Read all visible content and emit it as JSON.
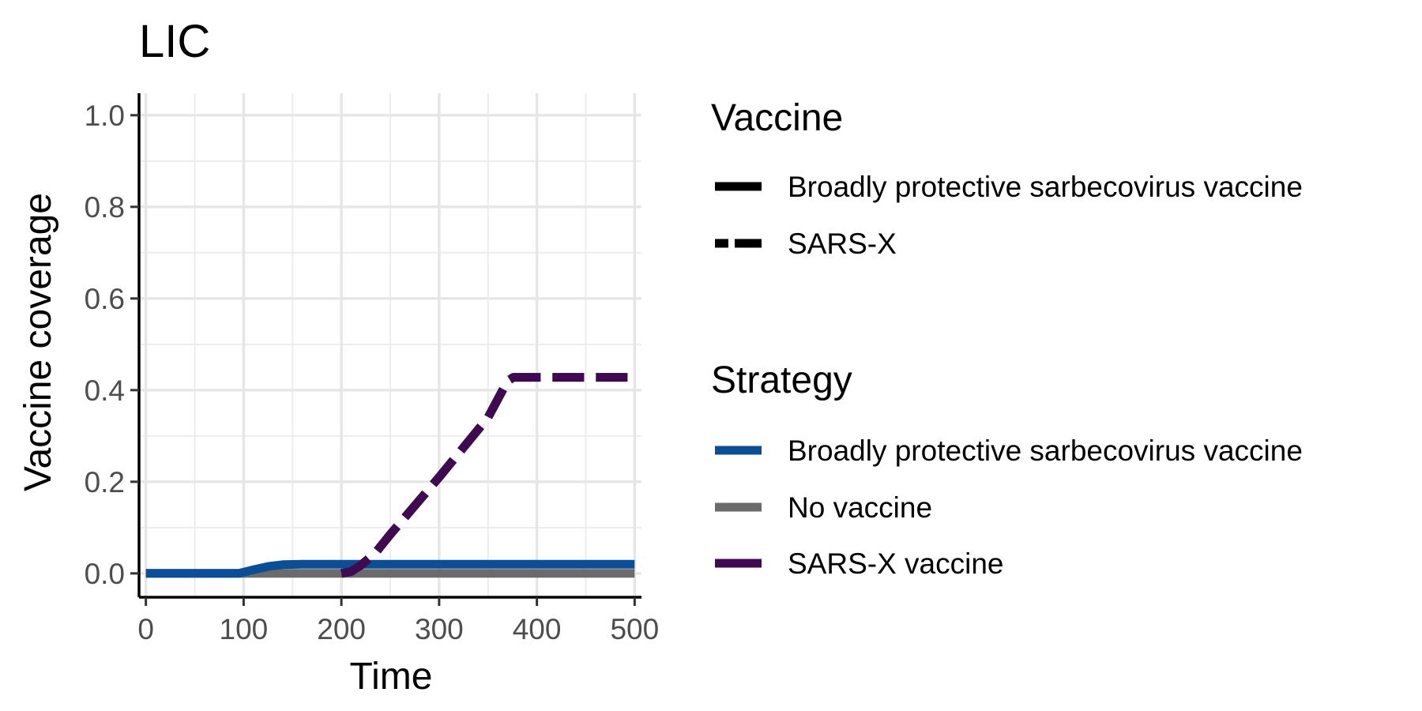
{
  "chart_data": {
    "type": "line",
    "title": "LIC",
    "xlabel": "Time",
    "ylabel": "Vaccine coverage",
    "xlim": [
      -7,
      507
    ],
    "ylim": [
      -0.052,
      1.048
    ],
    "x_ticks": [
      0,
      100,
      200,
      300,
      400,
      500
    ],
    "x_tick_labels": [
      "0",
      "100",
      "200",
      "300",
      "400",
      "500"
    ],
    "y_ticks": [
      0.0,
      0.2,
      0.4,
      0.6,
      0.8,
      1.0
    ],
    "y_tick_labels": [
      "0.0",
      "0.2",
      "0.4",
      "0.6",
      "0.8",
      "1.0"
    ],
    "grid": true,
    "legend_position": "right",
    "legends": [
      {
        "title": "Vaccine",
        "items": [
          {
            "label": "Broadly protective sarbecovirus vaccine",
            "linetype": "solid",
            "color": "#000000"
          },
          {
            "label": "SARS-X",
            "linetype": "dashed",
            "color": "#000000"
          }
        ]
      },
      {
        "title": "Strategy",
        "items": [
          {
            "label": "Broadly protective sarbecovirus vaccine",
            "color": "#0b4e96"
          },
          {
            "label": "No vaccine",
            "color": "#6b6b6b"
          },
          {
            "label": "SARS-X vaccine",
            "color": "#3f0a4f"
          }
        ]
      }
    ],
    "series": [
      {
        "strategy": "No vaccine",
        "vaccine": "Broadly protective sarbecovirus vaccine",
        "color": "#6b6b6b",
        "linetype": "solid",
        "x": [
          0,
          500
        ],
        "y": [
          0.0,
          0.0
        ]
      },
      {
        "strategy": "Broadly protective sarbecovirus vaccine",
        "vaccine": "Broadly protective sarbecovirus vaccine",
        "color": "#0b4e96",
        "linetype": "solid",
        "x": [
          0,
          95,
          110,
          125,
          140,
          160,
          200,
          300,
          400,
          500
        ],
        "y": [
          0.0,
          0.0,
          0.008,
          0.015,
          0.019,
          0.02,
          0.02,
          0.02,
          0.02,
          0.02
        ]
      },
      {
        "strategy": "Broadly protective sarbecovirus vaccine",
        "vaccine": "SARS-X",
        "color": "#0b4e96",
        "linetype": "dashed",
        "x": [
          200,
          210,
          220,
          235,
          250,
          300,
          350,
          370,
          376,
          400,
          500
        ],
        "y": [
          0.0,
          0.004,
          0.018,
          0.045,
          0.085,
          0.21,
          0.34,
          0.42,
          0.428,
          0.428,
          0.428
        ]
      },
      {
        "strategy": "SARS-X vaccine",
        "vaccine": "SARS-X",
        "color": "#3f0a4f",
        "linetype": "dashed",
        "x": [
          200,
          210,
          220,
          235,
          250,
          300,
          350,
          370,
          376,
          400,
          500
        ],
        "y": [
          0.0,
          0.004,
          0.018,
          0.045,
          0.085,
          0.21,
          0.34,
          0.42,
          0.428,
          0.428,
          0.428
        ]
      }
    ]
  }
}
